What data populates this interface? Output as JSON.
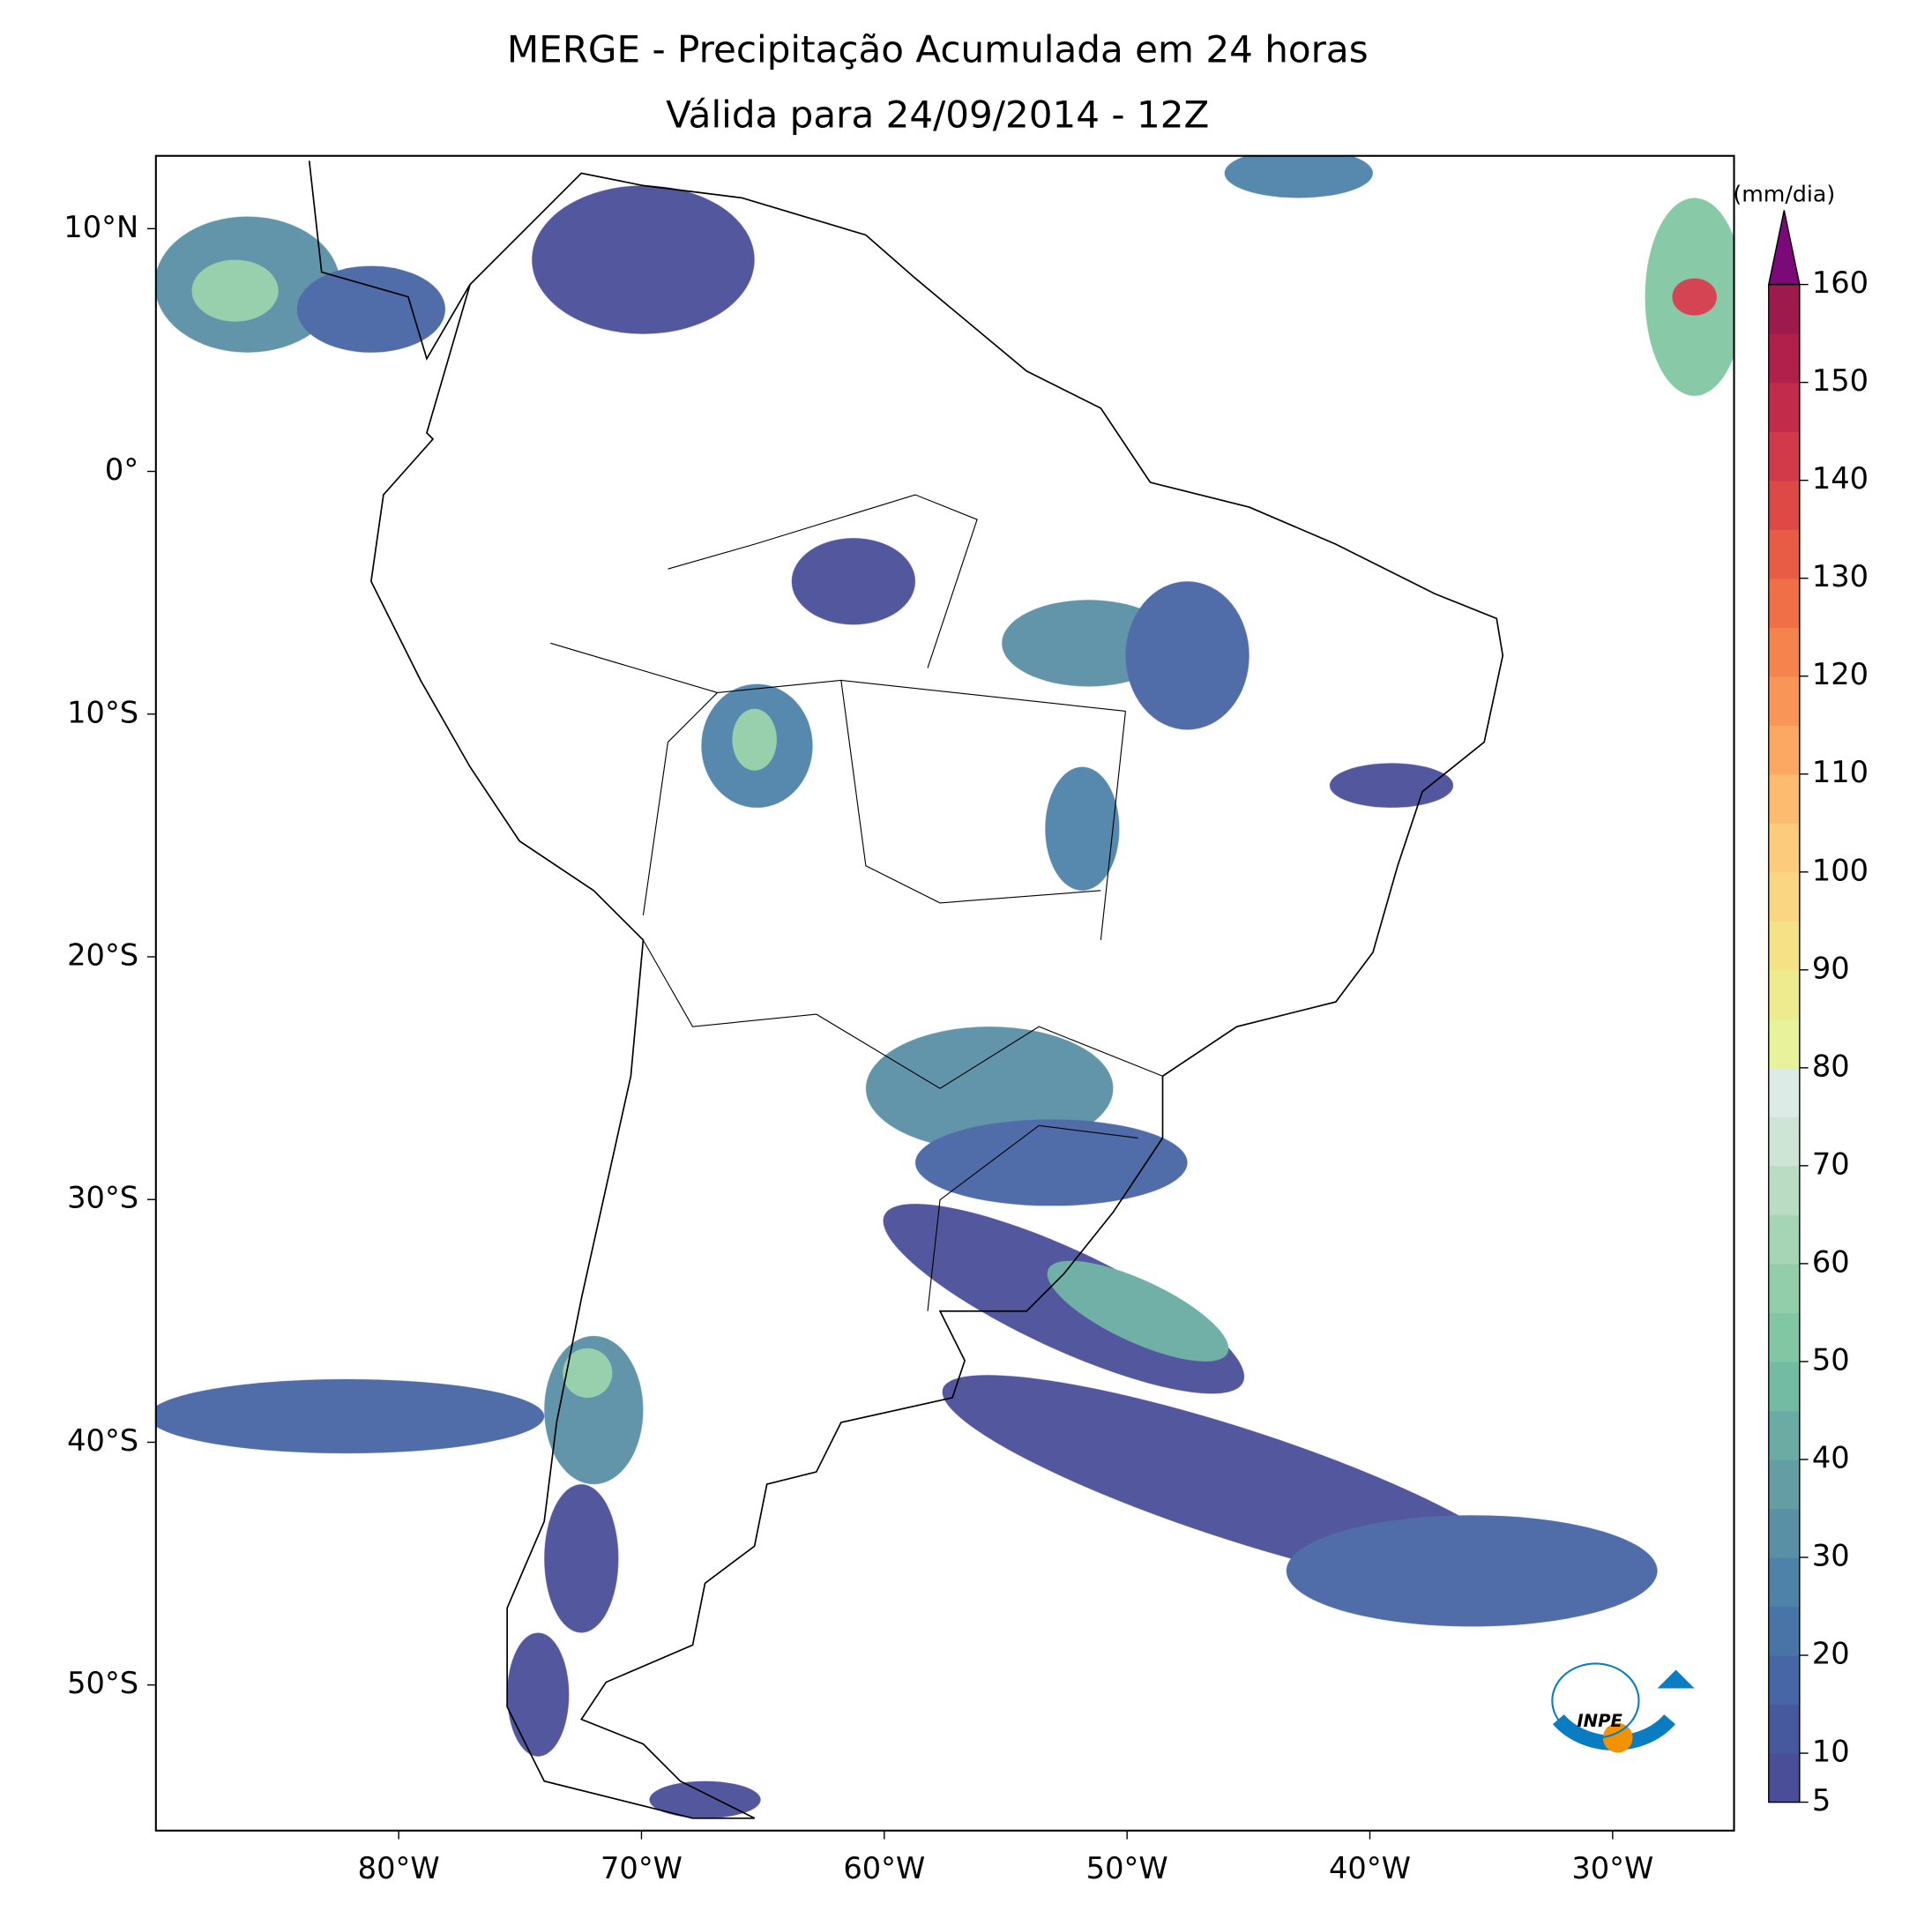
{
  "chart_data": {
    "type": "map",
    "title": "MERGE - Precipitação Acumulada em 24 horas",
    "subtitle": "Válida para 24/09/2014 - 12Z",
    "xlim": [
      -90,
      -25
    ],
    "ylim": [
      -56,
      13
    ],
    "xticks": [
      {
        "value": -80,
        "label": "80°W"
      },
      {
        "value": -70,
        "label": "70°W"
      },
      {
        "value": -60,
        "label": "60°W"
      },
      {
        "value": -50,
        "label": "50°W"
      },
      {
        "value": -40,
        "label": "40°W"
      },
      {
        "value": -30,
        "label": "30°W"
      }
    ],
    "yticks": [
      {
        "value": 10,
        "label": "10°N"
      },
      {
        "value": 0,
        "label": "0°"
      },
      {
        "value": -10,
        "label": "10°S"
      },
      {
        "value": -20,
        "label": "20°S"
      },
      {
        "value": -30,
        "label": "30°S"
      },
      {
        "value": -40,
        "label": "40°S"
      },
      {
        "value": -50,
        "label": "50°S"
      }
    ],
    "colorbar": {
      "label": "(mm/dia)",
      "lim": [
        5,
        160
      ],
      "ticks": [
        5,
        10,
        20,
        30,
        40,
        50,
        60,
        70,
        80,
        90,
        100,
        110,
        120,
        130,
        140,
        150,
        160
      ],
      "colors": [
        "#4a4e99",
        "#46599f",
        "#4766a5",
        "#4874a8",
        "#4f82a9",
        "#5a90a6",
        "#649ea4",
        "#6aaca3",
        "#74bba3",
        "#82c7a4",
        "#93ceaa",
        "#a6d5b5",
        "#b9dcc3",
        "#cce5d5",
        "#dcebe5",
        "#e8f29a",
        "#eeeb8e",
        "#f5e287",
        "#fad682",
        "#fccb7c",
        "#fdbb70",
        "#fca863",
        "#f99557",
        "#f6824e",
        "#f16f47",
        "#e85b45",
        "#de4946",
        "#d23a49",
        "#c22c4a",
        "#b0204b",
        "#9e1a4c"
      ],
      "extend_color": "#7b0a78"
    }
  }
}
